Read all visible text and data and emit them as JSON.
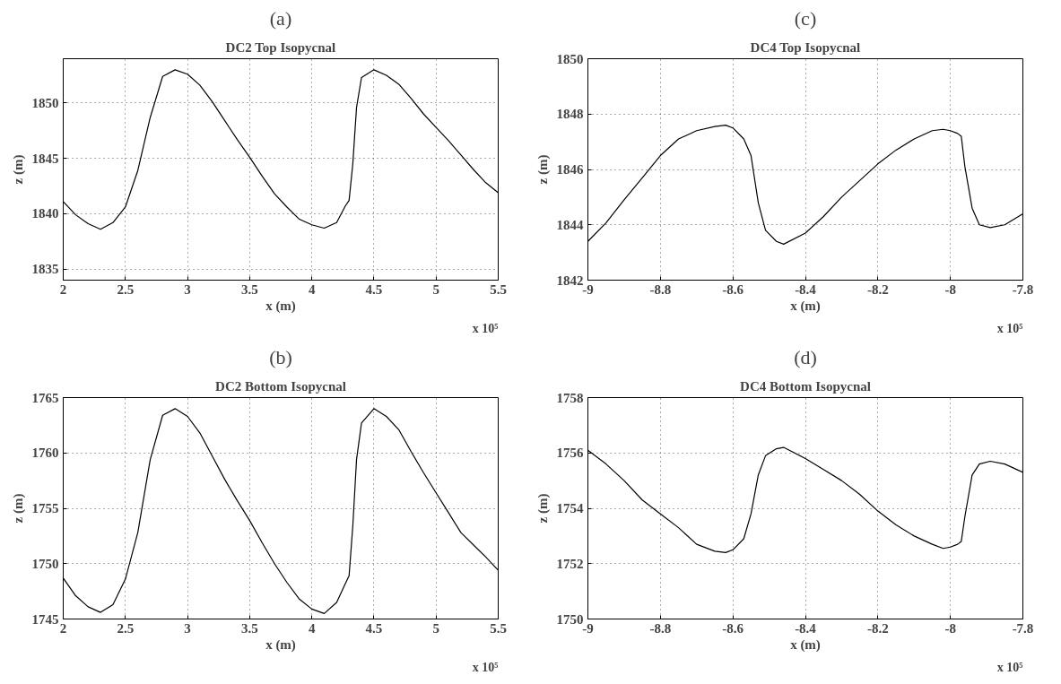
{
  "chart_data": [
    {
      "type": "line",
      "title": "(a)",
      "subtitle": "DC2 Top Isopycnal",
      "xlabel": "x (m)",
      "ylabel": "z (m)",
      "annotations": [
        "x 10⁵"
      ],
      "grid": true,
      "line_style": "solid",
      "xlim": [
        2,
        5.5
      ],
      "xticks": [
        2,
        2.5,
        3,
        3.5,
        4,
        4.5,
        5,
        5.5
      ],
      "ylim": [
        1834,
        1854
      ],
      "yticks": [
        1835,
        1840,
        1845,
        1850
      ],
      "x": [
        2.0,
        2.1,
        2.2,
        2.3,
        2.4,
        2.5,
        2.6,
        2.7,
        2.8,
        2.9,
        3.0,
        3.1,
        3.2,
        3.3,
        3.4,
        3.5,
        3.6,
        3.7,
        3.8,
        3.9,
        4.0,
        4.1,
        4.2,
        4.27,
        4.3,
        4.33,
        4.36,
        4.4,
        4.5,
        4.6,
        4.7,
        4.8,
        4.9,
        5.0,
        5.1,
        5.2,
        5.3,
        5.4,
        5.5
      ],
      "series": [
        {
          "color": "#000000",
          "values": [
            1841.1,
            1839.9,
            1839.1,
            1838.6,
            1839.2,
            1840.6,
            1843.9,
            1848.7,
            1852.4,
            1853.0,
            1852.6,
            1851.6,
            1850.1,
            1848.4,
            1846.7,
            1845.1,
            1843.4,
            1841.8,
            1840.6,
            1839.5,
            1839.0,
            1838.7,
            1839.2,
            1840.7,
            1841.2,
            1844.5,
            1849.6,
            1852.3,
            1853.0,
            1852.5,
            1851.7,
            1850.4,
            1849.0,
            1847.8,
            1846.6,
            1845.3,
            1844.0,
            1842.8,
            1841.9
          ]
        }
      ]
    },
    {
      "type": "line",
      "title": "(c)",
      "subtitle": "DC4 Top Isopycnal",
      "xlabel": "x (m)",
      "ylabel": "z (m)",
      "annotations": [
        "x 10⁵"
      ],
      "grid": true,
      "line_style": "solid",
      "xlim": [
        -9,
        -7.8
      ],
      "xticks": [
        -9,
        -8.8,
        -8.6,
        -8.4,
        -8.2,
        -8,
        -7.8
      ],
      "ylim": [
        1842,
        1850
      ],
      "yticks": [
        1842,
        1844,
        1846,
        1848,
        1850
      ],
      "x": [
        -9.0,
        -8.95,
        -8.9,
        -8.85,
        -8.8,
        -8.75,
        -8.7,
        -8.65,
        -8.62,
        -8.6,
        -8.57,
        -8.55,
        -8.53,
        -8.51,
        -8.48,
        -8.46,
        -8.4,
        -8.35,
        -8.3,
        -8.25,
        -8.2,
        -8.15,
        -8.1,
        -8.05,
        -8.02,
        -8.0,
        -7.98,
        -7.97,
        -7.96,
        -7.94,
        -7.92,
        -7.89,
        -7.85,
        -7.8
      ],
      "series": [
        {
          "color": "#000000",
          "values": [
            1843.4,
            1844.07,
            1844.9,
            1845.7,
            1846.5,
            1847.1,
            1847.4,
            1847.55,
            1847.6,
            1847.5,
            1847.1,
            1846.5,
            1844.8,
            1843.8,
            1843.4,
            1843.3,
            1843.7,
            1844.3,
            1845.0,
            1845.6,
            1846.2,
            1846.7,
            1847.1,
            1847.4,
            1847.45,
            1847.4,
            1847.3,
            1847.2,
            1846.1,
            1844.6,
            1844.0,
            1843.9,
            1844.0,
            1844.4
          ]
        }
      ]
    },
    {
      "type": "line",
      "title": "(b)",
      "subtitle": "DC2 Bottom Isopycnal",
      "xlabel": "x (m)",
      "ylabel": "z (m)",
      "annotations": [
        "x 10⁵"
      ],
      "grid": true,
      "line_style": "solid",
      "xlim": [
        2,
        5.5
      ],
      "xticks": [
        2,
        2.5,
        3,
        3.5,
        4,
        4.5,
        5,
        5.5
      ],
      "ylim": [
        1745,
        1765
      ],
      "yticks": [
        1745,
        1750,
        1755,
        1760,
        1765
      ],
      "x": [
        2.0,
        2.1,
        2.2,
        2.3,
        2.4,
        2.5,
        2.6,
        2.7,
        2.8,
        2.9,
        3.0,
        3.1,
        3.2,
        3.3,
        3.4,
        3.5,
        3.6,
        3.7,
        3.8,
        3.9,
        4.0,
        4.1,
        4.2,
        4.27,
        4.3,
        4.33,
        4.36,
        4.4,
        4.5,
        4.6,
        4.7,
        4.8,
        4.9,
        5.0,
        5.1,
        5.2,
        5.3,
        5.4,
        5.5
      ],
      "series": [
        {
          "color": "#000000",
          "values": [
            1748.7,
            1747.1,
            1746.1,
            1745.6,
            1746.3,
            1748.6,
            1752.8,
            1759.4,
            1763.4,
            1764.0,
            1763.3,
            1761.8,
            1759.7,
            1757.6,
            1755.7,
            1753.9,
            1751.9,
            1750.0,
            1748.3,
            1746.8,
            1745.9,
            1745.5,
            1746.5,
            1748.2,
            1748.9,
            1753.4,
            1759.4,
            1762.7,
            1764.0,
            1763.3,
            1762.1,
            1760.1,
            1758.2,
            1756.4,
            1754.6,
            1752.8,
            1751.7,
            1750.6,
            1749.4
          ]
        }
      ]
    },
    {
      "type": "line",
      "title": "(d)",
      "subtitle": "DC4 Bottom Isopycnal",
      "xlabel": "x (m)",
      "ylabel": "z (m)",
      "annotations": [
        "x 10⁵"
      ],
      "grid": true,
      "line_style": "solid",
      "xlim": [
        -9,
        -7.8
      ],
      "xticks": [
        -9,
        -8.8,
        -8.6,
        -8.4,
        -8.2,
        -8,
        -7.8
      ],
      "ylim": [
        1750,
        1758
      ],
      "yticks": [
        1750,
        1752,
        1754,
        1756,
        1758
      ],
      "x": [
        -9.0,
        -8.95,
        -8.9,
        -8.85,
        -8.8,
        -8.75,
        -8.7,
        -8.65,
        -8.62,
        -8.6,
        -8.57,
        -8.55,
        -8.53,
        -8.51,
        -8.48,
        -8.46,
        -8.4,
        -8.35,
        -8.3,
        -8.25,
        -8.2,
        -8.15,
        -8.1,
        -8.05,
        -8.02,
        -8.0,
        -7.98,
        -7.97,
        -7.96,
        -7.94,
        -7.92,
        -7.89,
        -7.85,
        -7.8
      ],
      "series": [
        {
          "color": "#000000",
          "values": [
            1756.1,
            1755.6,
            1755.0,
            1754.3,
            1753.8,
            1753.3,
            1752.7,
            1752.45,
            1752.4,
            1752.5,
            1752.9,
            1753.8,
            1755.2,
            1755.9,
            1756.15,
            1756.2,
            1755.8,
            1755.4,
            1755.0,
            1754.5,
            1753.9,
            1753.4,
            1753.0,
            1752.7,
            1752.55,
            1752.6,
            1752.7,
            1752.8,
            1753.7,
            1755.2,
            1755.6,
            1755.7,
            1755.6,
            1755.3
          ]
        }
      ]
    }
  ]
}
